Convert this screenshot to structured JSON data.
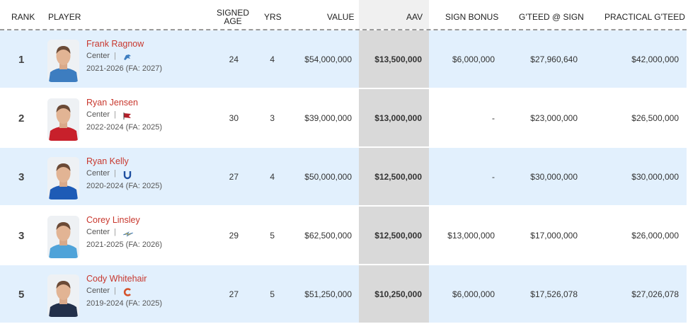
{
  "header": {
    "rank": "RANK",
    "player": "PLAYER",
    "signed_age_1": "SIGNED",
    "signed_age_2": "AGE",
    "yrs": "YRS",
    "value": "VALUE",
    "aav": "AAV",
    "sign_bonus": "SIGN BONUS",
    "gteed_sign": "G'TEED @ SIGN",
    "practical_gteed": "PRACTICAL G'TEED"
  },
  "rows": [
    {
      "rank": "1",
      "name": "Frank Ragnow",
      "position": "Center",
      "sep": "|",
      "years": "2021-2026 (FA: 2027)",
      "age": "24",
      "yrs": "4",
      "value": "$54,000,000",
      "aav": "$13,500,000",
      "bonus": "$6,000,000",
      "gteed": "$27,960,640",
      "practical": "$42,000,000",
      "team_logo": "lion-icon",
      "jersey": "#3d7dc0"
    },
    {
      "rank": "2",
      "name": "Ryan Jensen",
      "position": "Center",
      "sep": "|",
      "years": "2022-2024 (FA: 2025)",
      "age": "30",
      "yrs": "3",
      "value": "$39,000,000",
      "aav": "$13,000,000",
      "bonus": "-",
      "gteed": "$23,000,000",
      "practical": "$26,500,000",
      "team_logo": "flag-icon",
      "jersey": "#c8202b"
    },
    {
      "rank": "3",
      "name": "Ryan Kelly",
      "position": "Center",
      "sep": "|",
      "years": "2020-2024 (FA: 2025)",
      "age": "27",
      "yrs": "4",
      "value": "$50,000,000",
      "aav": "$12,500,000",
      "bonus": "-",
      "gteed": "$30,000,000",
      "practical": "$30,000,000",
      "team_logo": "horseshoe-icon",
      "jersey": "#1e5bb6"
    },
    {
      "rank": "3",
      "name": "Corey Linsley",
      "position": "Center",
      "sep": "|",
      "years": "2021-2025 (FA: 2026)",
      "age": "29",
      "yrs": "5",
      "value": "$62,500,000",
      "aav": "$12,500,000",
      "bonus": "$13,000,000",
      "gteed": "$17,000,000",
      "practical": "$26,000,000",
      "team_logo": "bolt-icon",
      "jersey": "#4fa3d9"
    },
    {
      "rank": "5",
      "name": "Cody Whitehair",
      "position": "Center",
      "sep": "|",
      "years": "2019-2024 (FA: 2025)",
      "age": "27",
      "yrs": "5",
      "value": "$51,250,000",
      "aav": "$10,250,000",
      "bonus": "$6,000,000",
      "gteed": "$17,526,078",
      "practical": "$27,026,078",
      "team_logo": "c-logo-icon",
      "jersey": "#23304a"
    }
  ]
}
